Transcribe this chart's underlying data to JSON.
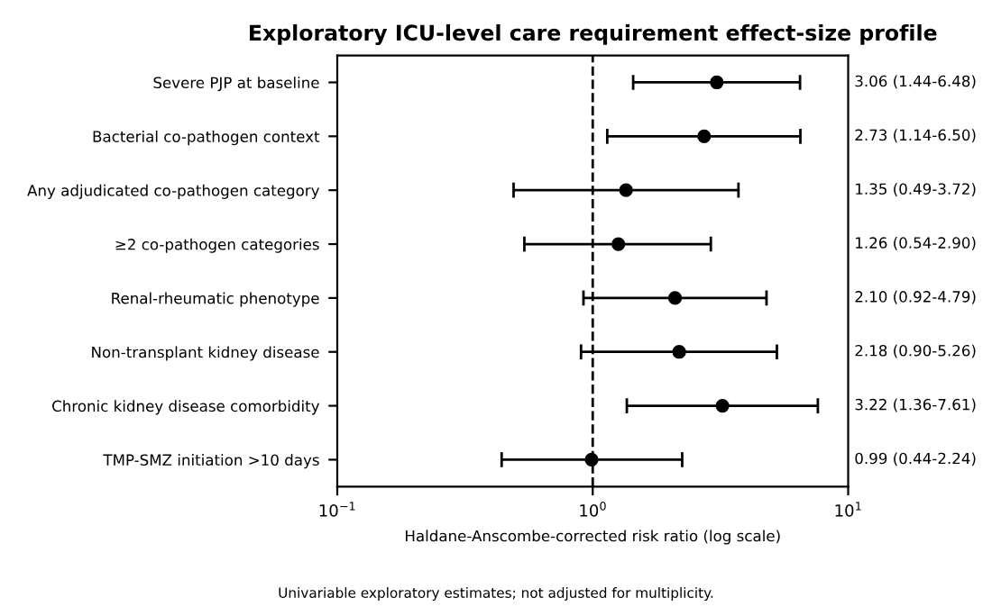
{
  "chart_data": {
    "type": "scatter",
    "orientation": "horizontal",
    "title": "Exploratory ICU-level care requirement effect-size profile",
    "xlabel": "Haldane-Anscombe-corrected risk ratio (log scale)",
    "categories": [
      "Severe PJP at baseline",
      "Bacterial co-pathogen context",
      "Any adjudicated co-pathogen category",
      "≥2 co-pathogen categories",
      "Renal-rheumatic phenotype",
      "Non-transplant kidney disease",
      "Chronic kidney disease comorbidity",
      "TMP-SMZ initiation >10 days"
    ],
    "values": [
      3.06,
      2.73,
      1.35,
      1.26,
      2.1,
      2.18,
      3.22,
      0.99
    ],
    "errors": [
      [
        1.44,
        6.48
      ],
      [
        1.14,
        6.5
      ],
      [
        0.49,
        3.72
      ],
      [
        0.54,
        2.9
      ],
      [
        0.92,
        4.79
      ],
      [
        0.9,
        5.26
      ],
      [
        1.36,
        7.61
      ],
      [
        0.44,
        2.24
      ]
    ],
    "value_labels": [
      "3.06 (1.44-6.48)",
      "2.73 (1.14-6.50)",
      "1.35 (0.49-3.72)",
      "1.26 (0.54-2.90)",
      "2.10 (0.92-4.79)",
      "2.18 (0.90-5.26)",
      "3.22 (1.36-7.61)",
      "0.99 (0.44-2.24)"
    ],
    "color": "#000000",
    "marker": "circle",
    "log": "x",
    "grid": false,
    "xlim": [
      0.1,
      10
    ],
    "xticks": [
      {
        "value": 0.1,
        "label": "10$^{−1}$"
      },
      {
        "value": 1,
        "label": "10$^{0}$"
      },
      {
        "value": 10,
        "label": "10$^{1}$"
      }
    ],
    "ref_lines": [
      {
        "axis": "x",
        "value": 1,
        "line_style": "dashed",
        "color": "#000000"
      }
    ],
    "annotations": [
      "Univariable exploratory estimates; not adjusted for multiplicity."
    ]
  }
}
